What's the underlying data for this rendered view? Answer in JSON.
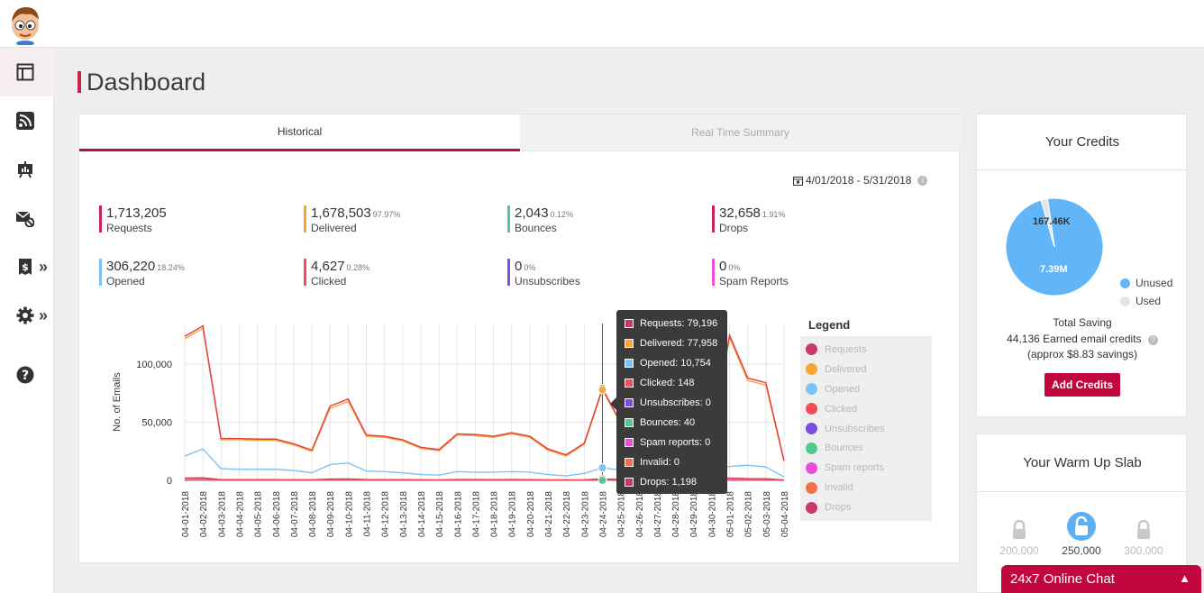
{
  "page": {
    "title": "Dashboard"
  },
  "tabs": [
    {
      "label": "Historical",
      "active": true
    },
    {
      "label": "Real Time Summary",
      "active": false
    }
  ],
  "date_range": "4/01/2018 - 5/31/2018",
  "stats": [
    {
      "value": "1,713,205",
      "pct": "",
      "label": "Requests",
      "color": "#c7245a"
    },
    {
      "value": "1,678,503",
      "pct": "97.97%",
      "label": "Delivered",
      "color": "#f7a635"
    },
    {
      "value": "2,043",
      "pct": "0.12%",
      "label": "Bounces",
      "color": "#54c98f"
    },
    {
      "value": "32,658",
      "pct": "1.91%",
      "label": "Drops",
      "color": "#c7245a"
    },
    {
      "value": "306,220",
      "pct": "18.24%",
      "label": "Opened",
      "color": "#7dc3f5"
    },
    {
      "value": "4,627",
      "pct": "0.28%",
      "label": "Clicked",
      "color": "#ef4e5a"
    },
    {
      "value": "0",
      "pct": "0%",
      "label": "Unsubscribes",
      "color": "#7d4ee0"
    },
    {
      "value": "0",
      "pct": "0%",
      "label": "Spam Reports",
      "color": "#ea4fd6"
    }
  ],
  "legend": {
    "title": "Legend",
    "items": [
      {
        "label": "Requests",
        "color": "#c9386a"
      },
      {
        "label": "Delivered",
        "color": "#f7a635"
      },
      {
        "label": "Opened",
        "color": "#7dc3f5"
      },
      {
        "label": "Clicked",
        "color": "#ef4e5a"
      },
      {
        "label": "Unsubscribes",
        "color": "#7d4ee0"
      },
      {
        "label": "Bounces",
        "color": "#54c98f"
      },
      {
        "label": "Spam reports",
        "color": "#ea4fd6"
      },
      {
        "label": "Invalid",
        "color": "#f37048"
      },
      {
        "label": "Drops",
        "color": "#c9386a"
      }
    ]
  },
  "tooltip": {
    "rows": [
      {
        "text": "Requests: 79,196",
        "color": "#c9386a"
      },
      {
        "text": "Delivered: 77,958",
        "color": "#f7a635"
      },
      {
        "text": "Opened: 10,754",
        "color": "#7dc3f5"
      },
      {
        "text": "Clicked: 148",
        "color": "#ef4e5a"
      },
      {
        "text": "Unsubscribes: 0",
        "color": "#7d4ee0"
      },
      {
        "text": "Bounces: 40",
        "color": "#54c98f"
      },
      {
        "text": "Spam reports: 0",
        "color": "#ea4fd6"
      },
      {
        "text": "Invalid: 0",
        "color": "#f37048"
      },
      {
        "text": "Drops: 1,198",
        "color": "#c9386a"
      }
    ]
  },
  "chart_data": {
    "type": "line",
    "ylabel": "No. of Emails",
    "xlabel": "",
    "ylim": [
      0,
      135000
    ],
    "yticks": [
      0,
      50000,
      100000
    ],
    "ytick_labels": [
      "0",
      "50,000",
      "100,000"
    ],
    "grid": true,
    "categories": [
      "04-01-2018",
      "04-02-2018",
      "04-03-2018",
      "04-04-2018",
      "04-05-2018",
      "04-06-2018",
      "04-07-2018",
      "04-08-2018",
      "04-09-2018",
      "04-10-2018",
      "04-11-2018",
      "04-12-2018",
      "04-13-2018",
      "04-14-2018",
      "04-15-2018",
      "04-16-2018",
      "04-17-2018",
      "04-18-2018",
      "04-19-2018",
      "04-20-2018",
      "04-21-2018",
      "04-22-2018",
      "04-23-2018",
      "04-24-2018",
      "04-25-2018",
      "04-26-2018",
      "04-27-2018",
      "04-28-2018",
      "04-29-2018",
      "04-30-2018",
      "05-01-2018",
      "05-02-2018",
      "05-03-2018",
      "05-04-2018"
    ],
    "highlight_index": 23,
    "series": [
      {
        "name": "Requests",
        "color": "#e23c48",
        "values": [
          124000,
          133000,
          36000,
          36000,
          35500,
          35500,
          31500,
          26000,
          64000,
          70000,
          39000,
          38000,
          35000,
          28500,
          26500,
          40000,
          39500,
          38000,
          41000,
          38000,
          27000,
          22000,
          32000,
          79196,
          50000,
          30000,
          78000,
          33000,
          45000,
          35000,
          125000,
          88000,
          84000,
          17000
        ]
      },
      {
        "name": "Delivered",
        "color": "#f7a635",
        "values": [
          122000,
          131000,
          35000,
          35000,
          34500,
          34500,
          30500,
          25000,
          62000,
          68000,
          38000,
          37000,
          34000,
          27500,
          25500,
          39000,
          38500,
          37000,
          40000,
          37000,
          26000,
          21000,
          31000,
          77958,
          49000,
          29000,
          77000,
          32000,
          44000,
          34000,
          123000,
          86000,
          82000,
          16000
        ]
      },
      {
        "name": "Opened",
        "color": "#7dc3f5",
        "values": [
          21000,
          27000,
          10000,
          9500,
          9500,
          9500,
          8500,
          6500,
          13500,
          15000,
          8000,
          7500,
          6500,
          5000,
          4500,
          7500,
          7000,
          7000,
          7500,
          7000,
          5000,
          3800,
          6000,
          10754,
          9000,
          8000,
          10000,
          7500,
          8500,
          8000,
          12000,
          13000,
          11500,
          3000
        ]
      },
      {
        "name": "Clicked",
        "color": "#ef4e5a",
        "values": [
          700,
          800,
          300,
          300,
          300,
          300,
          250,
          200,
          450,
          500,
          300,
          300,
          250,
          200,
          200,
          300,
          300,
          300,
          300,
          300,
          200,
          150,
          200,
          148,
          200,
          200,
          300,
          200,
          250,
          200,
          500,
          400,
          350,
          100
        ]
      },
      {
        "name": "Drops",
        "color": "#c9386a",
        "values": [
          2000,
          2200,
          600,
          600,
          600,
          600,
          550,
          500,
          1100,
          1200,
          700,
          650,
          600,
          500,
          450,
          700,
          700,
          650,
          700,
          650,
          450,
          400,
          550,
          1198,
          800,
          600,
          1200,
          600,
          800,
          600,
          2000,
          1500,
          1400,
          300
        ]
      },
      {
        "name": "Bounces",
        "color": "#54c98f",
        "values": [
          60,
          70,
          20,
          20,
          20,
          20,
          20,
          15,
          35,
          40,
          20,
          20,
          20,
          15,
          15,
          20,
          20,
          20,
          20,
          20,
          15,
          10,
          15,
          40,
          20,
          15,
          30,
          15,
          20,
          15,
          60,
          45,
          40,
          10
        ]
      }
    ]
  },
  "credits": {
    "title": "Your Credits",
    "chart_data": {
      "type": "pie",
      "slices": [
        {
          "name": "Unused",
          "value": 7.39,
          "label": "7.39M",
          "color": "#62b5f6"
        },
        {
          "name": "Used",
          "value": 0.16746,
          "label": "167.46K",
          "color": "#e6e6e6"
        }
      ]
    },
    "legend": [
      {
        "label": "Unused",
        "color": "#62b5f6"
      },
      {
        "label": "Used",
        "color": "#e6e6e6"
      }
    ],
    "saving_title": "Total Saving",
    "earned": "44,136 Earned email credits",
    "approx": "(approx $8.83 savings)",
    "button": "Add Credits"
  },
  "warmup": {
    "title": "Your Warm Up Slab",
    "slabs": [
      {
        "label": "200,000",
        "state": "locked"
      },
      {
        "label": "250,000",
        "state": "active"
      },
      {
        "label": "300,000",
        "state": "locked"
      }
    ]
  },
  "chat": {
    "label": "24x7 Online Chat"
  }
}
